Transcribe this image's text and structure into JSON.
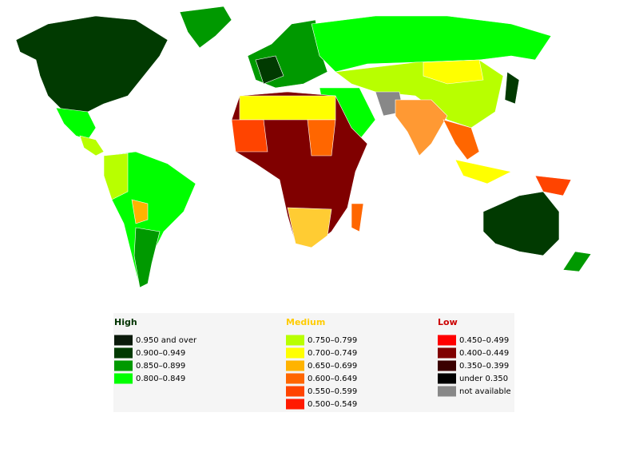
{
  "legend": {
    "groups": [
      {
        "title": "High",
        "color": "#003300",
        "items": [
          {
            "label": "0.950 and over",
            "color": "#0b1a0b"
          },
          {
            "label": "0.900–0.949",
            "color": "#013a01"
          },
          {
            "label": "0.850–0.899",
            "color": "#009900"
          },
          {
            "label": "0.800–0.849",
            "color": "#00ff00"
          }
        ]
      },
      {
        "title": "Medium",
        "color": "#ffcc00",
        "items": [
          {
            "label": "0.750–0.799",
            "color": "#b8ff00"
          },
          {
            "label": "0.700–0.749",
            "color": "#ffff00"
          },
          {
            "label": "0.650–0.699",
            "color": "#ffb300"
          },
          {
            "label": "0.600–0.649",
            "color": "#ff6600"
          },
          {
            "label": "0.550–0.599",
            "color": "#ff4400"
          },
          {
            "label": "0.500–0.549",
            "color": "#ff1a00"
          }
        ]
      },
      {
        "title": "Low",
        "color": "#cc0000",
        "items": [
          {
            "label": "0.450–0.499",
            "color": "#ff0000"
          },
          {
            "label": "0.400–0.449",
            "color": "#800000"
          },
          {
            "label": "0.350–0.399",
            "color": "#3a0000"
          },
          {
            "label": "under 0.350",
            "color": "#000000"
          },
          {
            "label": "not available",
            "color": "#888888"
          }
        ]
      }
    ]
  }
}
